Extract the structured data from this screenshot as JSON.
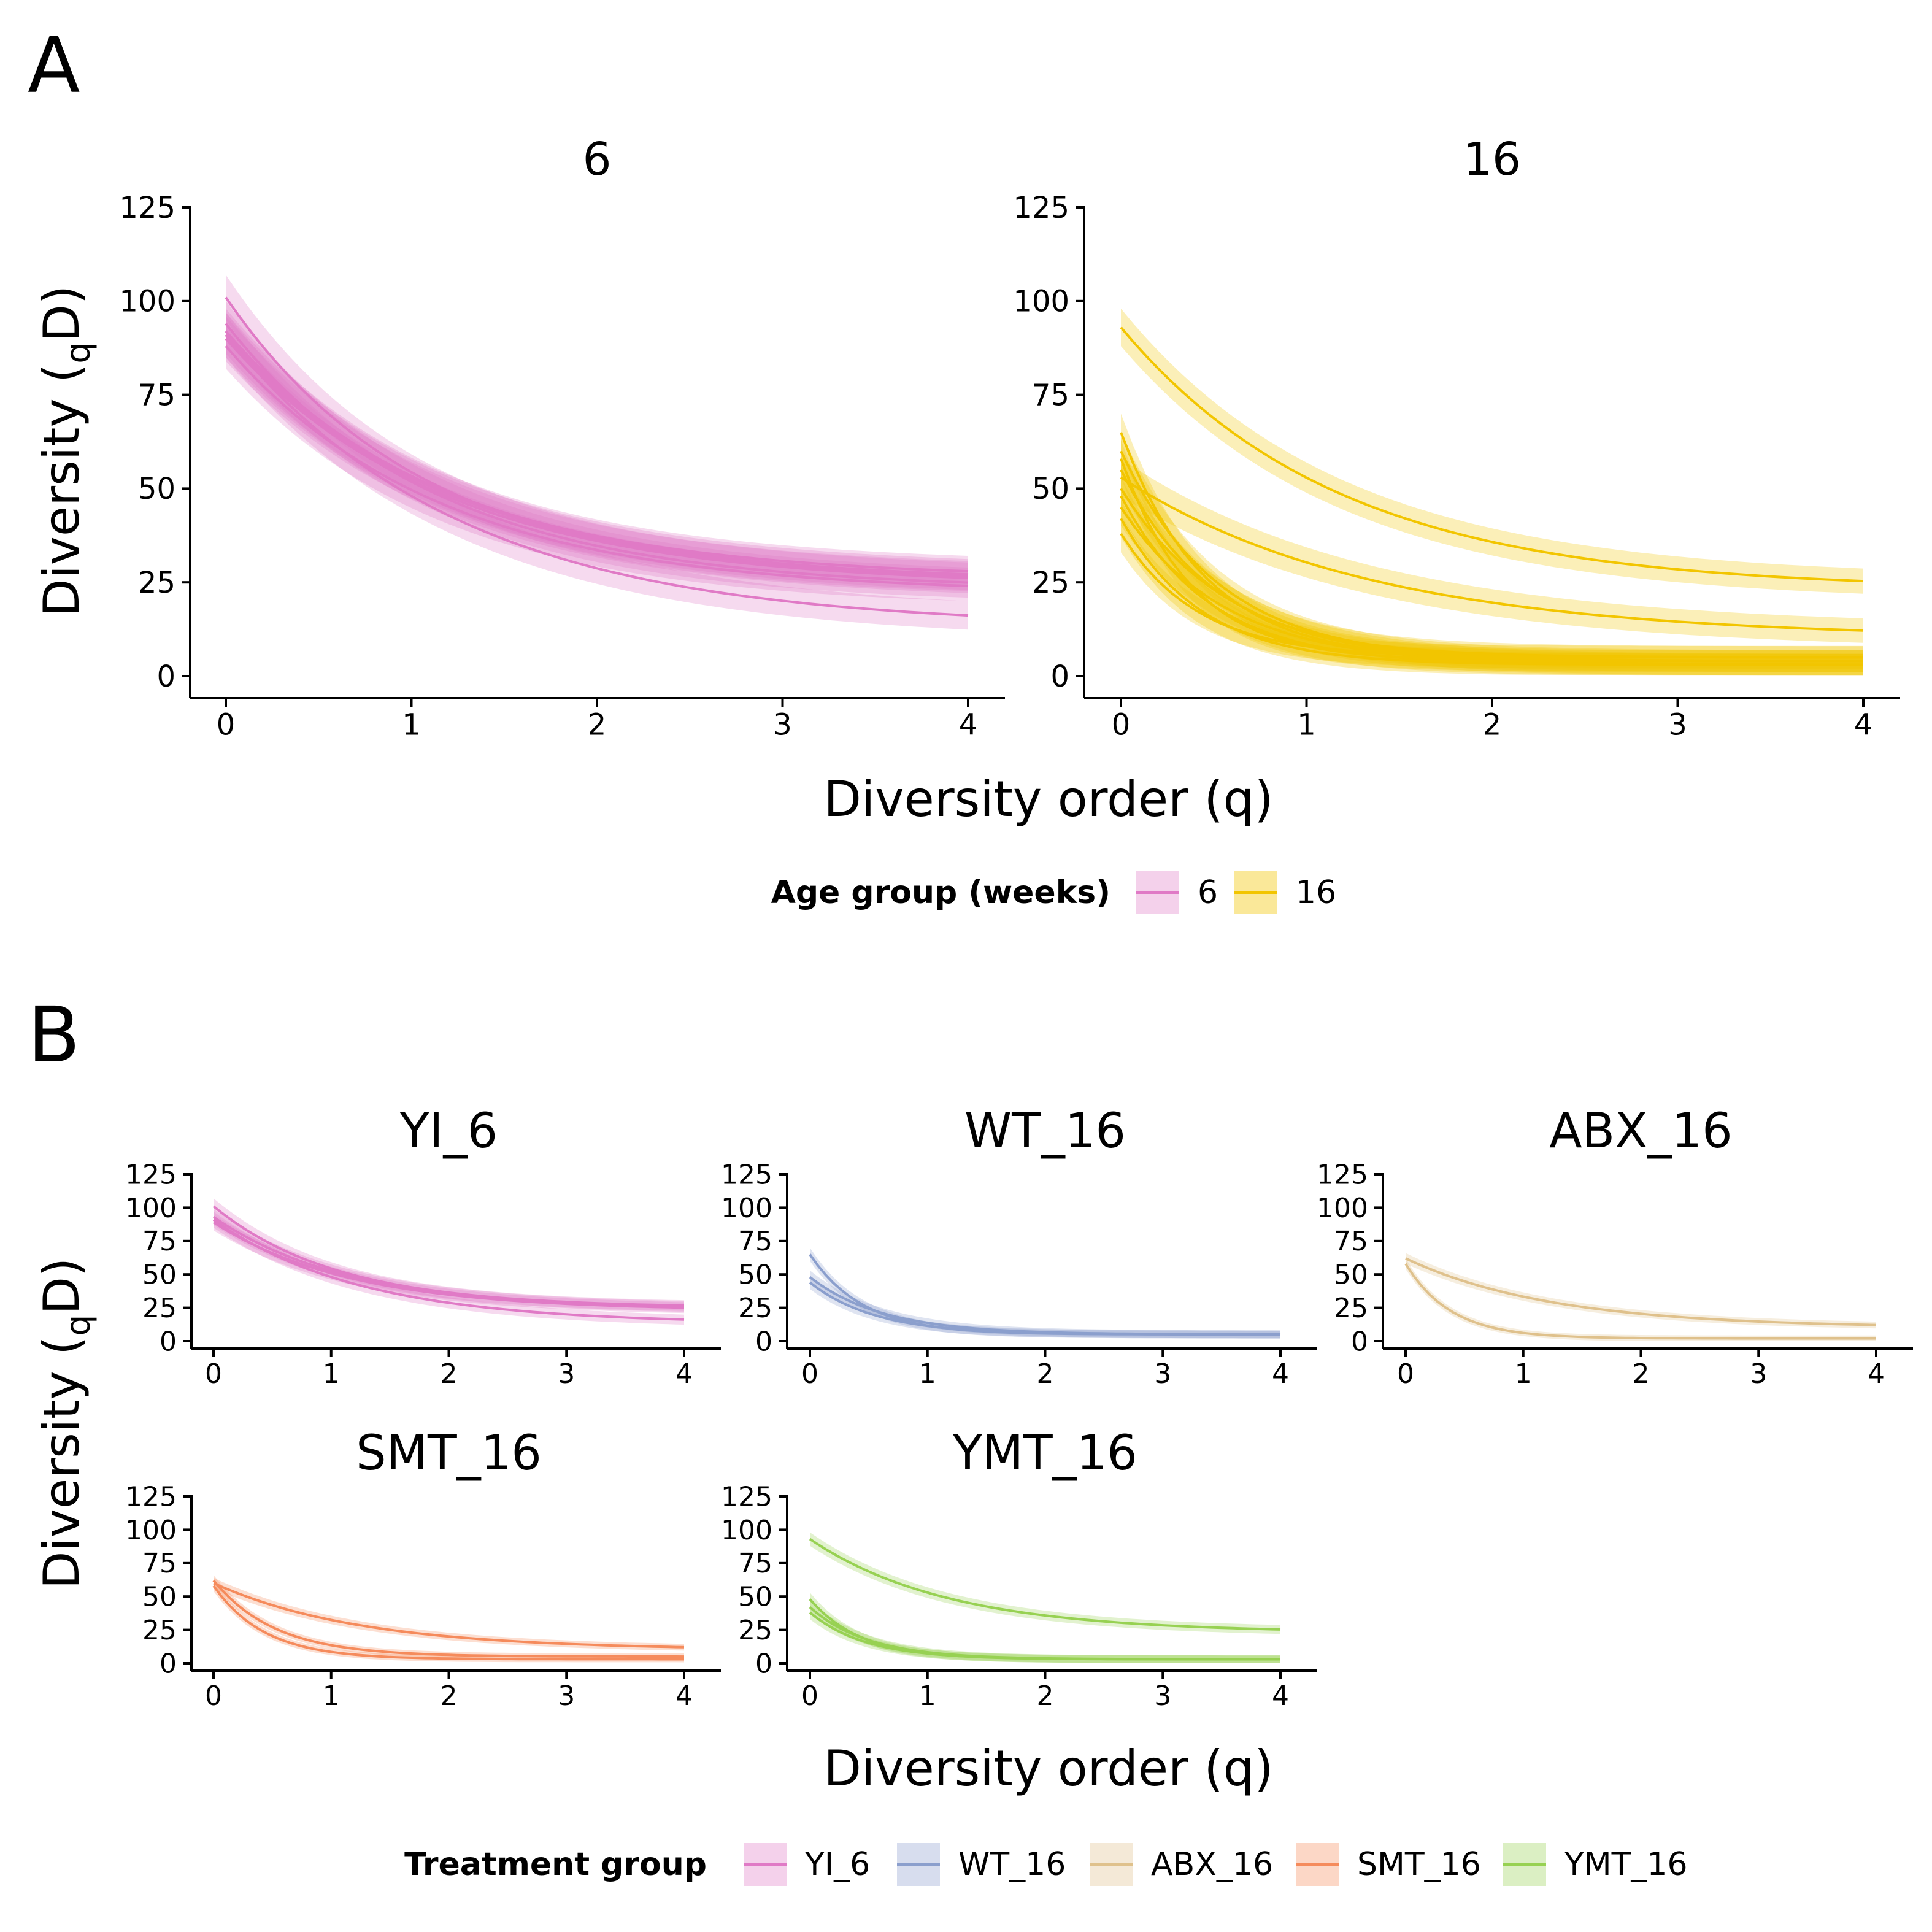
{
  "figure": {
    "panel_labels": [
      "A",
      "B"
    ],
    "xlabel": "Diversity order (q)",
    "ylabel_main": "Diversity (",
    "ylabel_sub": "q",
    "ylabel_end": "D)",
    "legend_a": {
      "title": "Age group (weeks)",
      "entries": [
        {
          "label": "6",
          "color": "#e07ac6"
        },
        {
          "label": "16",
          "color": "#f2c500"
        }
      ]
    },
    "legend_b": {
      "title": "Treatment group",
      "entries": [
        {
          "label": "YI_6",
          "color": "#e07ac6"
        },
        {
          "label": "WT_16",
          "color": "#8b9fcd"
        },
        {
          "label": "ABX_16",
          "color": "#dfc18c"
        },
        {
          "label": "SMT_16",
          "color": "#f58b5c"
        },
        {
          "label": "YMT_16",
          "color": "#97d152"
        }
      ]
    }
  },
  "chart_data": [
    {
      "type": "line",
      "panel": "A",
      "title": "6",
      "color": "#e07ac6",
      "xlim": [
        0,
        4
      ],
      "ylim": [
        0,
        125
      ],
      "xticks": [
        0,
        1,
        2,
        3,
        4
      ],
      "yticks": [
        0,
        25,
        50,
        75,
        100,
        125
      ],
      "band_halfwidth": 6,
      "series": [
        {
          "start": 101,
          "end": 25,
          "rate": 0.95
        },
        {
          "start": 94,
          "end": 23,
          "rate": 0.9
        },
        {
          "start": 92,
          "end": 26,
          "rate": 0.88
        },
        {
          "start": 90,
          "end": 24,
          "rate": 0.85
        },
        {
          "start": 88,
          "end": 22,
          "rate": 0.87
        },
        {
          "start": 91,
          "end": 25,
          "rate": 0.86
        },
        {
          "start": 91,
          "end": 13,
          "rate": 0.8
        }
      ]
    },
    {
      "type": "line",
      "panel": "A",
      "title": "16",
      "color": "#f2c500",
      "xlim": [
        0,
        4
      ],
      "ylim": [
        0,
        125
      ],
      "xticks": [
        0,
        1,
        2,
        3,
        4
      ],
      "yticks": [
        0,
        25,
        50,
        75,
        100,
        125
      ],
      "band_halfwidth": 5,
      "series": [
        {
          "start": 93,
          "end": 23,
          "rate": 0.85
        },
        {
          "start": 53,
          "end": 10,
          "rate": 0.75
        },
        {
          "start": 60,
          "end": 4,
          "rate": 1.9
        },
        {
          "start": 65,
          "end": 4,
          "rate": 2.2
        },
        {
          "start": 55,
          "end": 5,
          "rate": 2.0
        },
        {
          "start": 48,
          "end": 3,
          "rate": 2.1
        },
        {
          "start": 45,
          "end": 3,
          "rate": 1.8
        },
        {
          "start": 42,
          "end": 3,
          "rate": 2.3
        },
        {
          "start": 38,
          "end": 5,
          "rate": 2.4
        },
        {
          "start": 58,
          "end": 4,
          "rate": 2.6
        },
        {
          "start": 50,
          "end": 3,
          "rate": 1.7
        }
      ]
    },
    {
      "type": "line",
      "panel": "B",
      "title": "YI_6",
      "color": "#e07ac6",
      "xlim": [
        0,
        4
      ],
      "ylim": [
        0,
        125
      ],
      "xticks": [
        0,
        1,
        2,
        3,
        4
      ],
      "yticks": [
        0,
        25,
        50,
        75,
        100,
        125
      ],
      "band_halfwidth": 6,
      "series": [
        {
          "start": 101,
          "end": 25,
          "rate": 0.95
        },
        {
          "start": 93,
          "end": 24,
          "rate": 0.88
        },
        {
          "start": 89,
          "end": 23,
          "rate": 0.86
        },
        {
          "start": 91,
          "end": 13,
          "rate": 0.8
        }
      ]
    },
    {
      "type": "line",
      "panel": "B",
      "title": "WT_16",
      "color": "#8b9fcd",
      "xlim": [
        0,
        4
      ],
      "ylim": [
        0,
        125
      ],
      "xticks": [
        0,
        1,
        2,
        3,
        4
      ],
      "yticks": [
        0,
        25,
        50,
        75,
        100,
        125
      ],
      "band_halfwidth": 5,
      "series": [
        {
          "start": 65,
          "end": 5,
          "rate": 2.2
        },
        {
          "start": 48,
          "end": 5,
          "rate": 1.6
        },
        {
          "start": 44,
          "end": 5,
          "rate": 1.8
        }
      ]
    },
    {
      "type": "line",
      "panel": "B",
      "title": "ABX_16",
      "color": "#dfc18c",
      "xlim": [
        0,
        4
      ],
      "ylim": [
        0,
        125
      ],
      "xticks": [
        0,
        1,
        2,
        3,
        4
      ],
      "yticks": [
        0,
        25,
        50,
        75,
        100,
        125
      ],
      "band_halfwidth": 4,
      "series": [
        {
          "start": 62,
          "end": 10,
          "rate": 0.8
        },
        {
          "start": 58,
          "end": 2,
          "rate": 2.6
        }
      ]
    },
    {
      "type": "line",
      "panel": "B",
      "title": "SMT_16",
      "color": "#f58b5c",
      "xlim": [
        0,
        4
      ],
      "ylim": [
        0,
        125
      ],
      "xticks": [
        0,
        1,
        2,
        3,
        4
      ],
      "yticks": [
        0,
        25,
        50,
        75,
        100,
        125
      ],
      "band_halfwidth": 4,
      "series": [
        {
          "start": 60,
          "end": 10,
          "rate": 0.8
        },
        {
          "start": 62,
          "end": 5,
          "rate": 1.9
        },
        {
          "start": 58,
          "end": 3,
          "rate": 2.3
        }
      ]
    },
    {
      "type": "line",
      "panel": "B",
      "title": "YMT_16",
      "color": "#97d152",
      "xlim": [
        0,
        4
      ],
      "ylim": [
        0,
        125
      ],
      "xticks": [
        0,
        1,
        2,
        3,
        4
      ],
      "yticks": [
        0,
        25,
        50,
        75,
        100,
        125
      ],
      "band_halfwidth": 5,
      "series": [
        {
          "start": 93,
          "end": 23,
          "rate": 0.85
        },
        {
          "start": 48,
          "end": 3,
          "rate": 2.3
        },
        {
          "start": 42,
          "end": 3,
          "rate": 2.0
        },
        {
          "start": 38,
          "end": 3,
          "rate": 2.1
        }
      ]
    }
  ]
}
